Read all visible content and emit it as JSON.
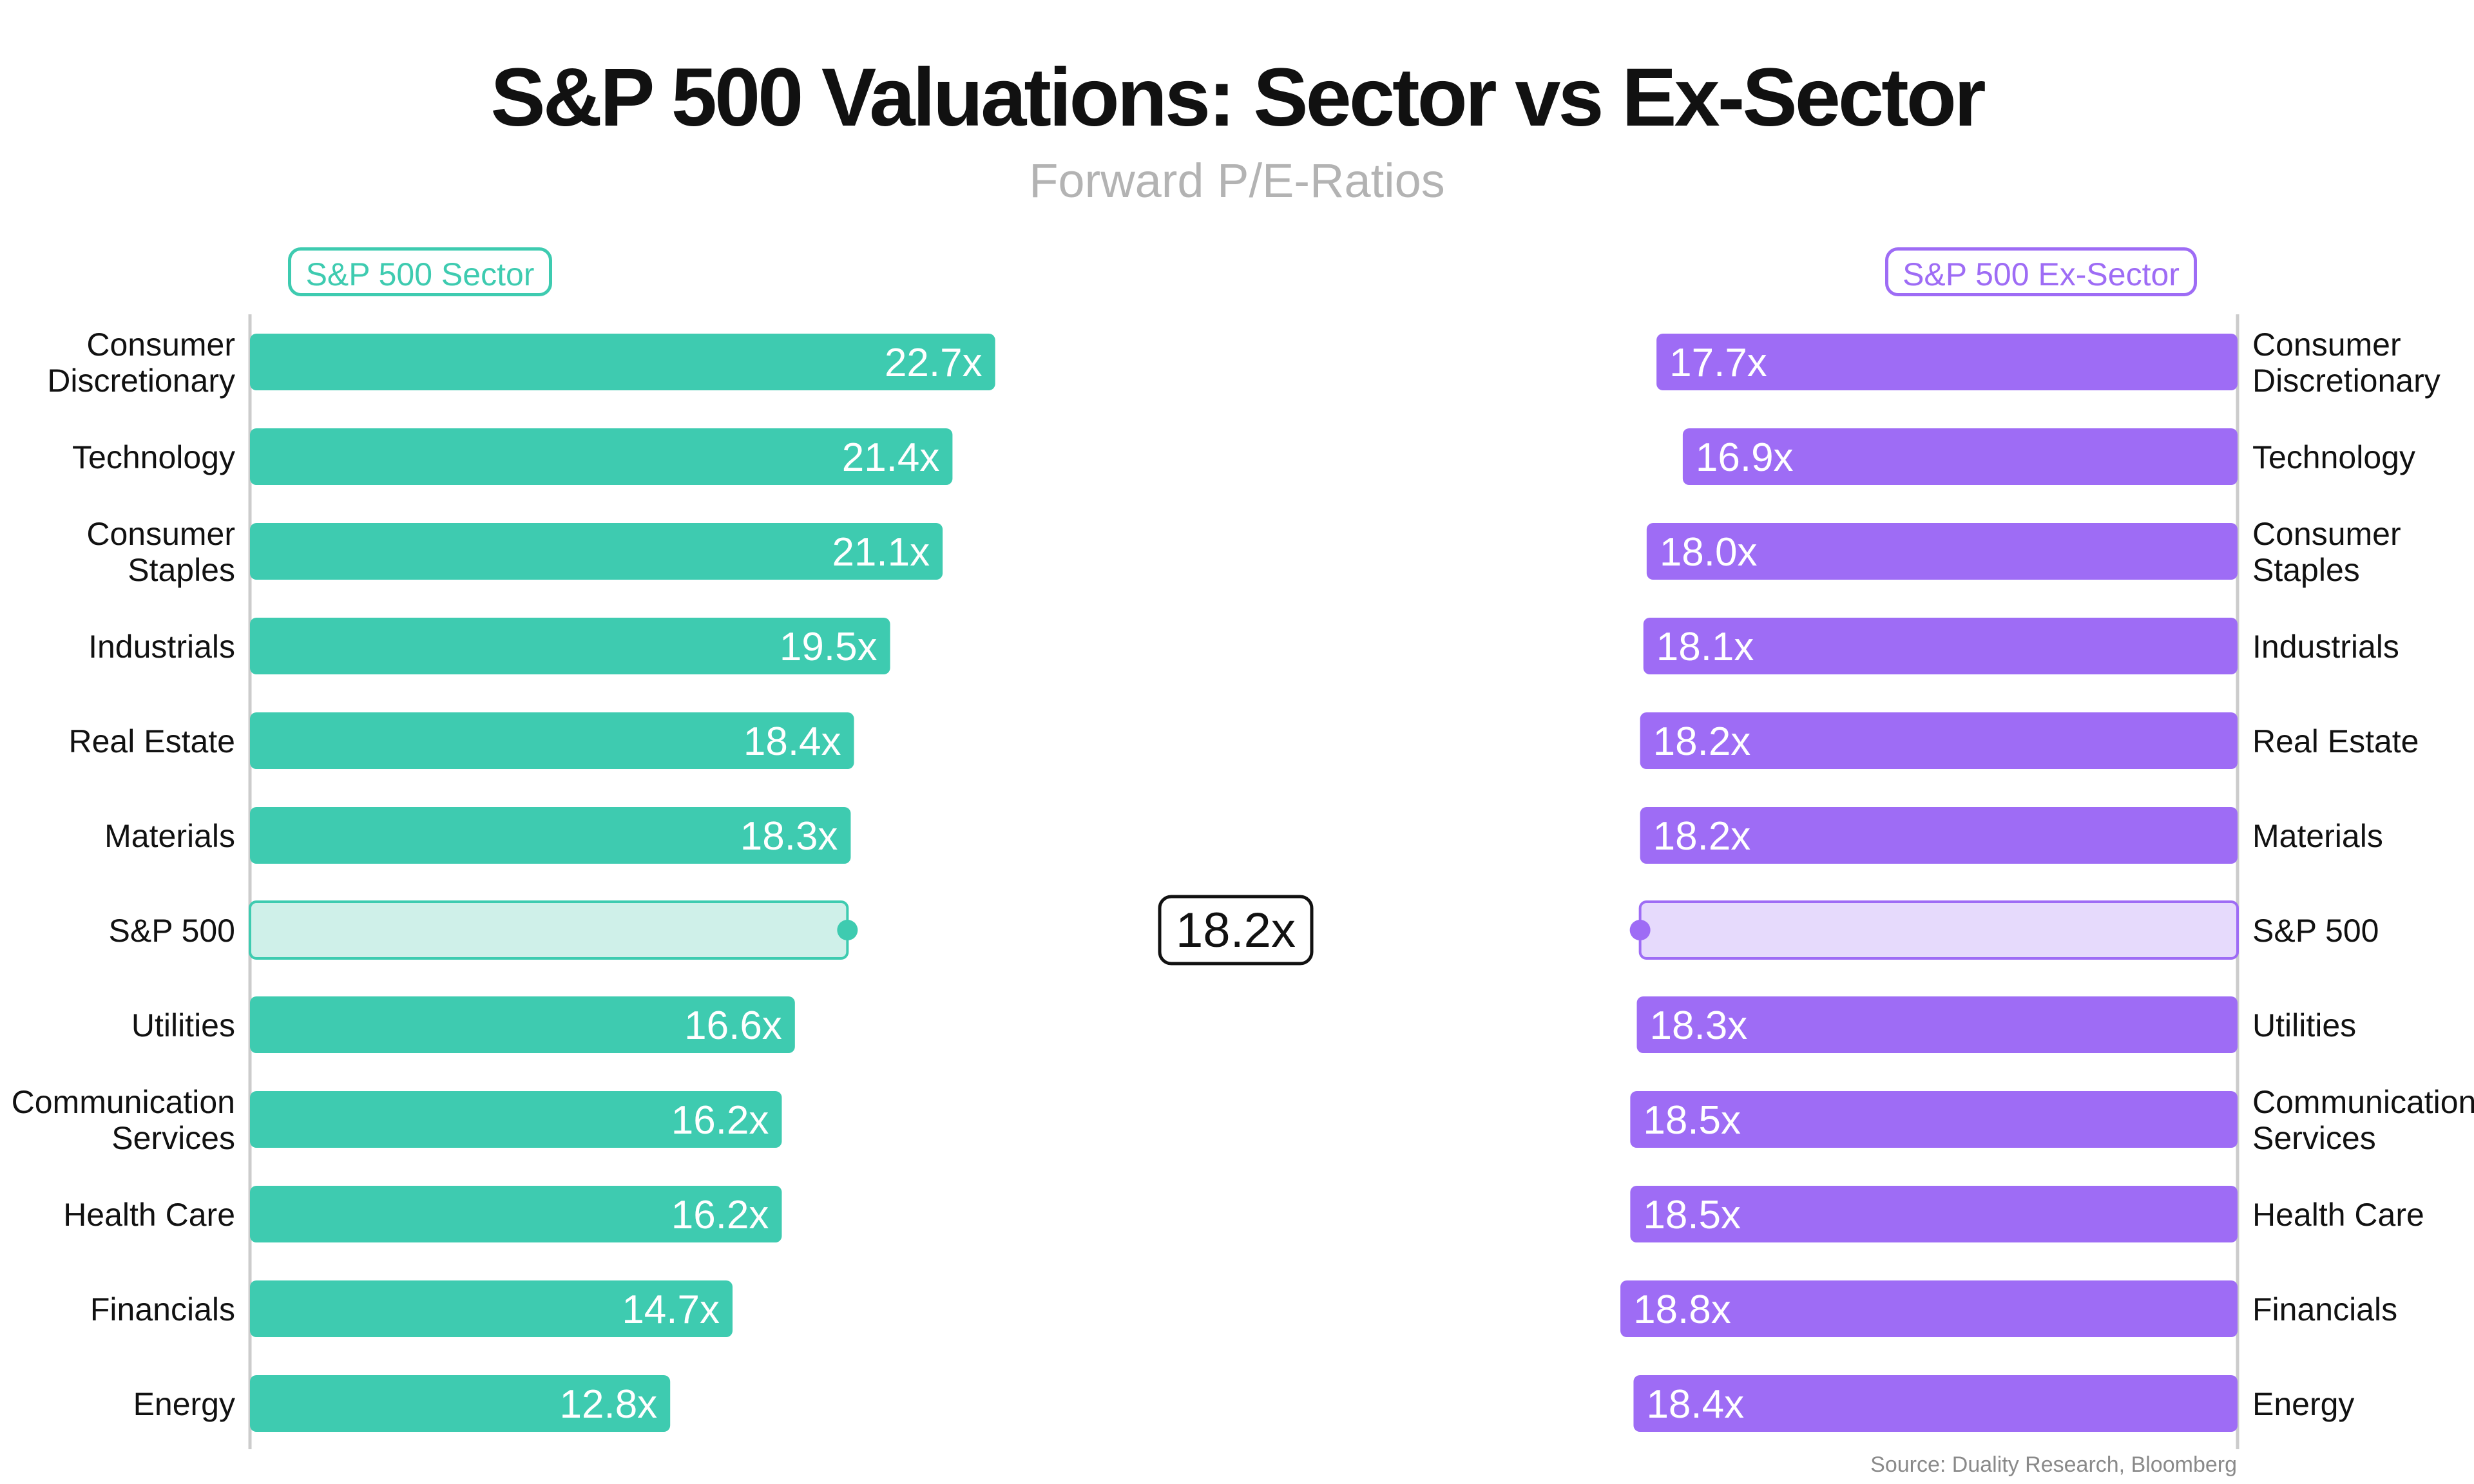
{
  "title": "S&P 500 Valuations: Sector vs Ex-Sector",
  "subtitle": "Forward P/E-Ratios",
  "source": "Source: Duality Research, Bloomberg",
  "colors": {
    "sector": "#3ecbb0",
    "sector_light": "#cff0e9",
    "ex_sector": "#9e6cf5",
    "ex_sector_light": "#e6dafc",
    "axis": "#cccccc"
  },
  "chart_data": {
    "type": "bar",
    "title": "S&P 500 Valuations: Sector vs Ex-Sector",
    "subtitle": "Forward P/E-Ratios",
    "categories": [
      [
        "Consumer",
        "Discretionary"
      ],
      [
        "Technology"
      ],
      [
        "Consumer",
        "Staples"
      ],
      [
        "Industrials"
      ],
      [
        "Real Estate"
      ],
      [
        "Materials"
      ],
      [
        "S&P 500"
      ],
      [
        "Utilities"
      ],
      [
        "Communication",
        "Services"
      ],
      [
        "Health Care"
      ],
      [
        "Financials"
      ],
      [
        "Energy"
      ]
    ],
    "series": [
      {
        "name": "S&P 500 Sector",
        "values": [
          22.7,
          21.4,
          21.1,
          19.5,
          18.4,
          18.3,
          18.2,
          16.6,
          16.2,
          16.2,
          14.7,
          12.8
        ],
        "labels": [
          "22.7x",
          "21.4x",
          "21.1x",
          "19.5x",
          "18.4x",
          "18.3x",
          "",
          "16.6x",
          "16.2x",
          "16.2x",
          "14.7x",
          "12.8x"
        ]
      },
      {
        "name": "S&P 500 Ex-Sector",
        "values": [
          17.7,
          16.9,
          18.0,
          18.1,
          18.2,
          18.2,
          18.2,
          18.3,
          18.5,
          18.5,
          18.8,
          18.4
        ],
        "labels": [
          "17.7x",
          "16.9x",
          "18.0x",
          "18.1x",
          "18.2x",
          "18.2x",
          "",
          "18.3x",
          "18.5x",
          "18.5x",
          "18.8x",
          "18.4x"
        ]
      }
    ],
    "benchmark": {
      "category": "S&P 500",
      "value": 18.2,
      "label": "18.2x"
    },
    "left_axis": {
      "direction": "left-to-right",
      "xlim": [
        0,
        28.85
      ]
    },
    "right_axis": {
      "direction": "right-to-left",
      "xlim": [
        0,
        28.85
      ]
    }
  }
}
